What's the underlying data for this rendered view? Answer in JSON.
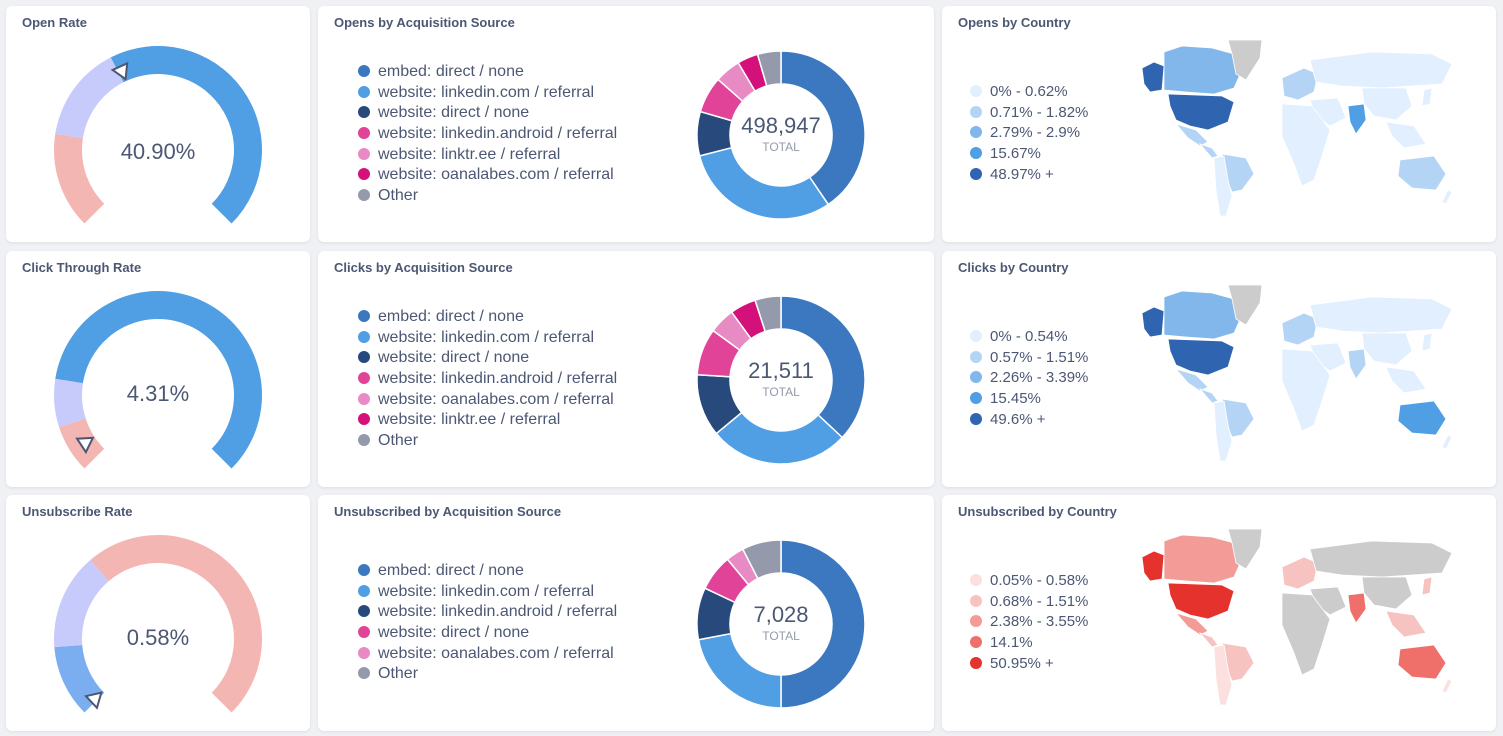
{
  "rows": [
    {
      "gauge": {
        "title": "Open Rate",
        "value": "40.90%",
        "ratio": 0.409,
        "segments": [
          {
            "color": "#f4b6b3",
            "frac": 0.2
          },
          {
            "color": "#c7cbfb",
            "frac": 0.2
          },
          {
            "color": "#509ee3",
            "frac": 0.6
          }
        ]
      },
      "donut": {
        "title": "Opens by Acquisition Source",
        "total": "498,947",
        "total_label": "TOTAL",
        "items": [
          {
            "label": "embed: direct / none",
            "color": "#3b78bf",
            "share": 0.405
          },
          {
            "label": "website: linkedin.com / referral",
            "color": "#509ee3",
            "share": 0.305
          },
          {
            "label": "website: direct / none",
            "color": "#27497b",
            "share": 0.085
          },
          {
            "label": "website: linkedin.android / referral",
            "color": "#e04398",
            "share": 0.07
          },
          {
            "label": "website: linktr.ee / referral",
            "color": "#e88bc4",
            "share": 0.05
          },
          {
            "label": "website: oanalabes.com / referral",
            "color": "#d4117a",
            "share": 0.04
          },
          {
            "label": "Other",
            "color": "#949aab",
            "share": 0.045
          }
        ]
      },
      "map": {
        "title": "Opens by Country",
        "palette": [
          "#e1efff",
          "#b3d4f5",
          "#81b7ea",
          "#509ee3",
          "#2f64b1"
        ],
        "ranges": [
          "0% - 0.62%",
          "0.71% - 1.82%",
          "2.79% - 2.9%",
          "15.67%",
          "48.97% +"
        ]
      }
    },
    {
      "gauge": {
        "title": "Click Through Rate",
        "value": "4.31%",
        "ratio": 0.0431,
        "segments": [
          {
            "color": "#f4b6b3",
            "frac": 0.1
          },
          {
            "color": "#c7cbfb",
            "frac": 0.1
          },
          {
            "color": "#509ee3",
            "frac": 0.8
          }
        ]
      },
      "donut": {
        "title": "Clicks by Acquisition Source",
        "total": "21,511",
        "total_label": "TOTAL",
        "items": [
          {
            "label": "embed: direct / none",
            "color": "#3b78bf",
            "share": 0.37
          },
          {
            "label": "website: linkedin.com / referral",
            "color": "#509ee3",
            "share": 0.27
          },
          {
            "label": "website: direct / none",
            "color": "#27497b",
            "share": 0.12
          },
          {
            "label": "website: linkedin.android / referral",
            "color": "#e04398",
            "share": 0.09
          },
          {
            "label": "website: oanalabes.com / referral",
            "color": "#e88bc4",
            "share": 0.05
          },
          {
            "label": "website: linktr.ee / referral",
            "color": "#d4117a",
            "share": 0.05
          },
          {
            "label": "Other",
            "color": "#949aab",
            "share": 0.05
          }
        ]
      },
      "map": {
        "title": "Clicks by Country",
        "palette": [
          "#e1efff",
          "#b3d4f5",
          "#81b7ea",
          "#509ee3",
          "#2f64b1"
        ],
        "ranges": [
          "0% - 0.54%",
          "0.57% - 1.51%",
          "2.26% - 3.39%",
          "15.45%",
          "49.6% +"
        ]
      }
    },
    {
      "gauge": {
        "title": "Unsubscribe Rate",
        "value": "0.58%",
        "ratio": 0.0058,
        "segments": [
          {
            "color": "#7aaef0",
            "frac": 0.15
          },
          {
            "color": "#c7cbfb",
            "frac": 0.2
          },
          {
            "color": "#f4b6b3",
            "frac": 0.65
          }
        ]
      },
      "donut": {
        "title": "Unsubscribed by Acquisition Source",
        "total": "7,028",
        "total_label": "TOTAL",
        "items": [
          {
            "label": "embed: direct / none",
            "color": "#3b78bf",
            "share": 0.5
          },
          {
            "label": "website: linkedin.com / referral",
            "color": "#509ee3",
            "share": 0.22
          },
          {
            "label": "website: linkedin.android / referral",
            "color": "#27497b",
            "share": 0.1
          },
          {
            "label": "website: direct / none",
            "color": "#e04398",
            "share": 0.07
          },
          {
            "label": "website: oanalabes.com / referral",
            "color": "#e88bc4",
            "share": 0.035
          },
          {
            "label": "Other",
            "color": "#949aab",
            "share": 0.075
          }
        ]
      },
      "map": {
        "title": "Unsubscribed by Country",
        "palette": [
          "#fbe0df",
          "#f7c3c1",
          "#f29b97",
          "#ef6f6a",
          "#e6322c"
        ],
        "ranges": [
          "0.05% - 0.58%",
          "0.68% - 1.51%",
          "2.38% - 3.55%",
          "14.1%",
          "50.95% +"
        ]
      }
    }
  ]
}
